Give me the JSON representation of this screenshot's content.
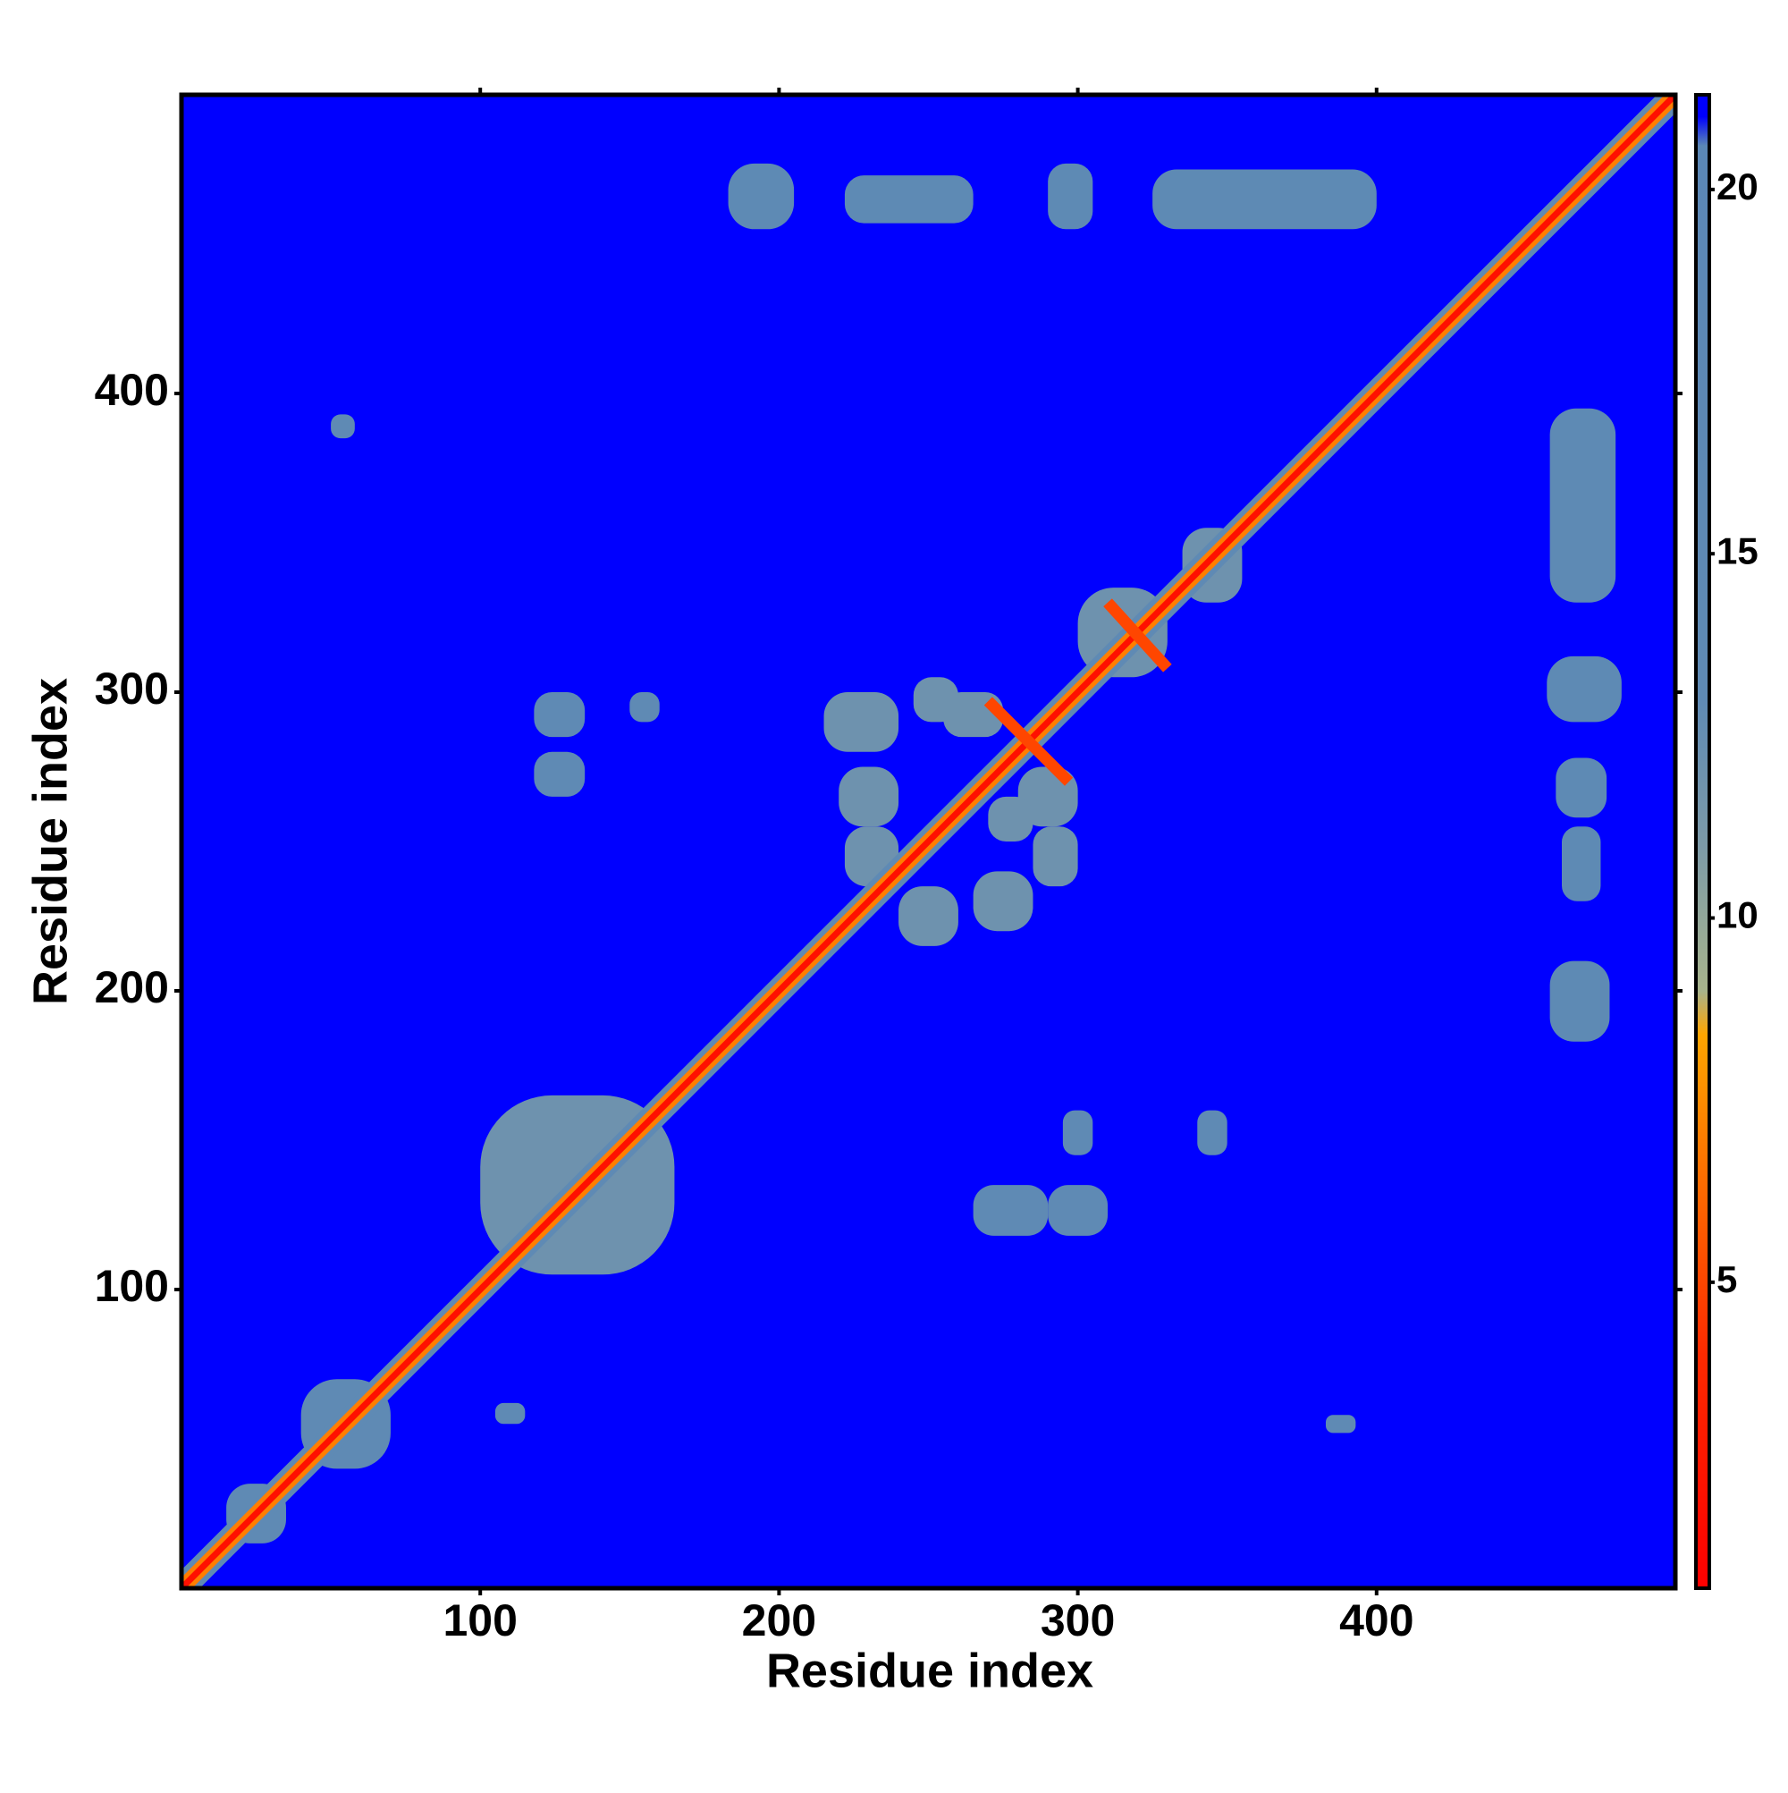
{
  "chart_data": {
    "type": "heatmap",
    "xlabel": "Residue index",
    "ylabel": "Residue index",
    "xlim": [
      0,
      500
    ],
    "ylim": [
      0,
      500
    ],
    "xticks": [
      100,
      200,
      300,
      400
    ],
    "yticks": [
      100,
      200,
      300,
      400
    ],
    "zlim": [
      0.8,
      21.3
    ],
    "zticks": [
      5,
      10,
      15,
      20
    ],
    "colorscale": [
      [
        0.8,
        "#ff0000"
      ],
      [
        4,
        "#ff2a00"
      ],
      [
        8.4,
        "#ffa500"
      ],
      [
        9,
        "#a8b48c"
      ],
      [
        11,
        "#7c9aa8"
      ],
      [
        13,
        "#5f8ab4"
      ],
      [
        20.6,
        "#5b87b5"
      ],
      [
        21,
        "#0000ff"
      ],
      [
        21.3,
        "#0000ff"
      ]
    ],
    "background": 21.3,
    "cells": [
      {
        "x": [
          183,
          205
        ],
        "y": [
          455,
          477
        ],
        "value": 14
      },
      {
        "x": [
          222,
          265
        ],
        "y": [
          457,
          473
        ],
        "value": 14
      },
      {
        "x": [
          290,
          305
        ],
        "y": [
          455,
          477
        ],
        "value": 14
      },
      {
        "x": [
          325,
          400
        ],
        "y": [
          455,
          475
        ],
        "value": 14
      },
      {
        "x": [
          458,
          480
        ],
        "y": [
          330,
          395
        ],
        "value": 14
      },
      {
        "x": [
          457,
          482
        ],
        "y": [
          290,
          312
        ],
        "value": 14
      },
      {
        "x": [
          460,
          477
        ],
        "y": [
          258,
          278
        ],
        "value": 14
      },
      {
        "x": [
          462,
          475
        ],
        "y": [
          230,
          255
        ],
        "value": 14
      },
      {
        "x": [
          458,
          478
        ],
        "y": [
          183,
          210
        ],
        "value": 14
      },
      {
        "x": [
          100,
          165
        ],
        "y": [
          105,
          165
        ],
        "value": 12
      },
      {
        "x": [
          40,
          70
        ],
        "y": [
          40,
          70
        ],
        "value": 13
      },
      {
        "x": [
          15,
          35
        ],
        "y": [
          15,
          35
        ],
        "value": 13
      },
      {
        "x": [
          335,
          355
        ],
        "y": [
          330,
          355
        ],
        "value": 12
      },
      {
        "x": [
          300,
          330
        ],
        "y": [
          305,
          335
        ],
        "value": 12
      },
      {
        "x": [
          215,
          240
        ],
        "y": [
          280,
          300
        ],
        "value": 12
      },
      {
        "x": [
          220,
          240
        ],
        "y": [
          255,
          275
        ],
        "value": 12
      },
      {
        "x": [
          222,
          240
        ],
        "y": [
          235,
          255
        ],
        "value": 12
      },
      {
        "x": [
          265,
          285
        ],
        "y": [
          220,
          240
        ],
        "value": 12
      },
      {
        "x": [
          285,
          300
        ],
        "y": [
          235,
          255
        ],
        "value": 12
      },
      {
        "x": [
          240,
          260
        ],
        "y": [
          215,
          235
        ],
        "value": 12
      },
      {
        "x": [
          255,
          275
        ],
        "y": [
          285,
          300
        ],
        "value": 12
      },
      {
        "x": [
          280,
          300
        ],
        "y": [
          255,
          275
        ],
        "value": 12
      },
      {
        "x": [
          245,
          260
        ],
        "y": [
          290,
          305
        ],
        "value": 12
      },
      {
        "x": [
          270,
          285
        ],
        "y": [
          250,
          265
        ],
        "value": 12
      },
      {
        "x": [
          118,
          135
        ],
        "y": [
          285,
          300
        ],
        "value": 13
      },
      {
        "x": [
          118,
          135
        ],
        "y": [
          265,
          280
        ],
        "value": 13
      },
      {
        "x": [
          150,
          160
        ],
        "y": [
          290,
          300
        ],
        "value": 13
      },
      {
        "x": [
          265,
          290
        ],
        "y": [
          118,
          135
        ],
        "value": 13
      },
      {
        "x": [
          290,
          310
        ],
        "y": [
          118,
          135
        ],
        "value": 13
      },
      {
        "x": [
          295,
          305
        ],
        "y": [
          145,
          160
        ],
        "value": 13
      },
      {
        "x": [
          340,
          350
        ],
        "y": [
          145,
          160
        ],
        "value": 13
      },
      {
        "x": [
          383,
          393
        ],
        "y": [
          52,
          58
        ],
        "value": 13
      },
      {
        "x": [
          50,
          58
        ],
        "y": [
          385,
          393
        ],
        "value": 13
      },
      {
        "x": [
          105,
          115
        ],
        "y": [
          55,
          62
        ],
        "value": 13
      }
    ],
    "lines": [
      {
        "x": [
          0,
          500
        ],
        "y": [
          0,
          500
        ],
        "value": 13
      },
      {
        "x": [
          0,
          500
        ],
        "y": [
          0,
          500
        ],
        "value": 7
      },
      {
        "x": [
          0,
          500
        ],
        "y": [
          0,
          500
        ],
        "value": 2
      },
      {
        "x": [
          270,
          297
        ],
        "y": [
          297,
          270
        ],
        "value": 5
      },
      {
        "x": [
          310,
          330
        ],
        "y": [
          330,
          308
        ],
        "value": 5
      }
    ]
  }
}
